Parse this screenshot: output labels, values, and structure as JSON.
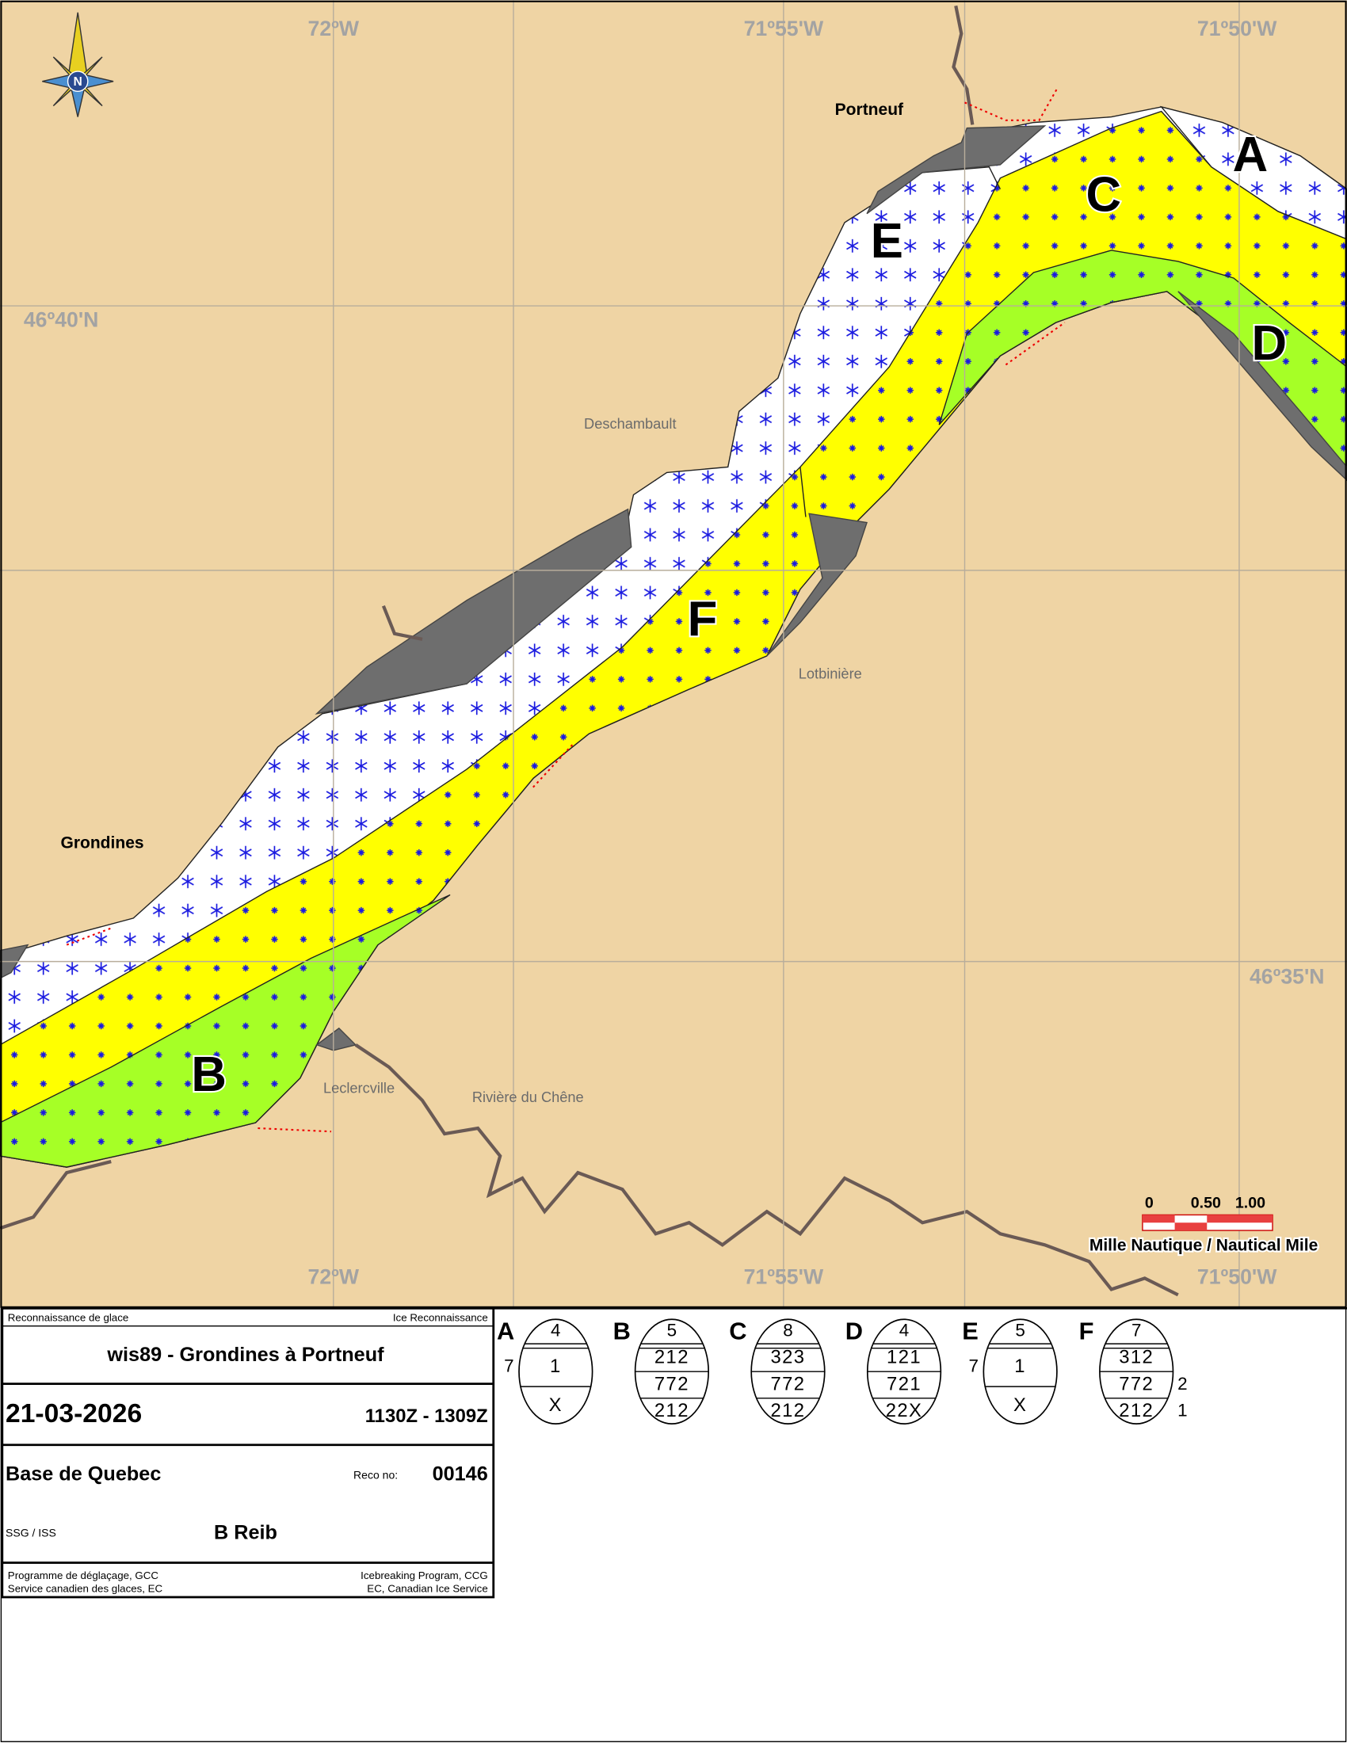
{
  "map": {
    "top_longitudes": [
      "72ºW",
      "71º55'W",
      "71º50'W"
    ],
    "bottom_longitudes": [
      "72ºW",
      "71º55'W",
      "71º50'W"
    ],
    "latitudes": [
      "46º40'N",
      "46º35'N"
    ],
    "north": "N",
    "places": [
      "Portneuf",
      "Grondines",
      "Deschambault",
      "Lotbinière",
      "Leclercville",
      "Rivière du Chêne"
    ],
    "zones": [
      "A",
      "B",
      "C",
      "D",
      "E",
      "F"
    ],
    "scale": {
      "ticks": [
        "0",
        "0.50",
        "1.00"
      ],
      "label": "Mille Nautique / Nautical Mile"
    }
  },
  "info": {
    "header_left": "Reconnaissance de glace",
    "header_right": "Ice Reconnaissance",
    "title": "wis89 - Grondines à Portneuf",
    "date": "21-03-2026",
    "time": "1130Z - 1309Z",
    "base": "Base de Quebec",
    "reco_label": "Reco no:",
    "reco_no": "00146",
    "ship_label": "SSG / ISS",
    "observer": "B Reib",
    "footer_left": [
      "Programme de déglaçage, GCC",
      "Service canadien des glaces, EC"
    ],
    "footer_right": [
      "Icebreaking Program, CCG",
      "EC, Canadian Ice Service"
    ]
  },
  "egg_codes": [
    {
      "zone": "A",
      "concentration": "4",
      "left": "7",
      "rows": [
        "1",
        "X"
      ]
    },
    {
      "zone": "B",
      "concentration": "5",
      "rows": [
        "212",
        "772",
        "212"
      ]
    },
    {
      "zone": "C",
      "concentration": "8",
      "rows": [
        "323",
        "772",
        "212"
      ]
    },
    {
      "zone": "D",
      "concentration": "4",
      "rows": [
        "121",
        "721",
        "22X"
      ]
    },
    {
      "zone": "E",
      "concentration": "5",
      "left": "7",
      "rows": [
        "1",
        "X"
      ]
    },
    {
      "zone": "F",
      "concentration": "7",
      "rows": [
        "312",
        "772",
        "212"
      ],
      "right": [
        "2",
        "1"
      ]
    }
  ]
}
